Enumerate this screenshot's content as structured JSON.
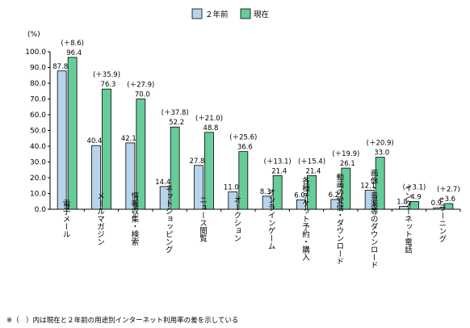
{
  "chart_data": {
    "type": "bar",
    "ylabel": "(%)",
    "ylim": [
      0,
      100
    ],
    "yticks": [
      "0.0",
      "10.0",
      "20.0",
      "30.0",
      "40.0",
      "50.0",
      "60.0",
      "70.0",
      "80.0",
      "90.0",
      "100.0"
    ],
    "categories": [
      "電子メール",
      "メールマガジン",
      "情報収集・検索",
      "ネットショッピング",
      "ニュース閲覧",
      "オークション",
      "オンラインゲーム",
      "各種チケット予約・購入",
      "動画の受信・ダウンロード",
      "画像・音楽等のダウンロード",
      "インターネット電話",
      "eラーニング"
    ],
    "series": [
      {
        "name": "２年前",
        "color": "#b8d4ec",
        "values": [
          87.8,
          40.4,
          42.1,
          14.4,
          27.8,
          11.0,
          8.3,
          6.0,
          6.2,
          12.1,
          1.8,
          0.9
        ],
        "labels": [
          "87.8",
          "40.4",
          "42.1",
          "14.4",
          "27.8",
          "11.0",
          "8.3",
          "6.0",
          "6.2",
          "12.1",
          "1.8",
          "0.9"
        ]
      },
      {
        "name": "現在",
        "color": "#66cc99",
        "values": [
          96.4,
          76.3,
          70.0,
          52.2,
          48.8,
          36.6,
          21.4,
          21.4,
          26.1,
          33.0,
          4.9,
          3.6
        ],
        "labels": [
          "96.4",
          "76.3",
          "70.0",
          "52.2",
          "48.8",
          "36.6",
          "21.4",
          "21.4",
          "26.1",
          "33.0",
          "4.9",
          "3.6"
        ]
      }
    ],
    "differences": [
      "(＋8.6)",
      "(＋35.9)",
      "(＋27.9)",
      "(＋37.8)",
      "(＋21.0)",
      "(＋25.6)",
      "(＋13.1)",
      "(＋15.4)",
      "(＋19.9)",
      "(＋20.9)",
      "(＋3.1)",
      "(＋2.7)"
    ],
    "legend": "top-right",
    "grid": false
  },
  "footnote": "※（　）内は現在と２年前の用途別インターネット利用率の差を示している"
}
